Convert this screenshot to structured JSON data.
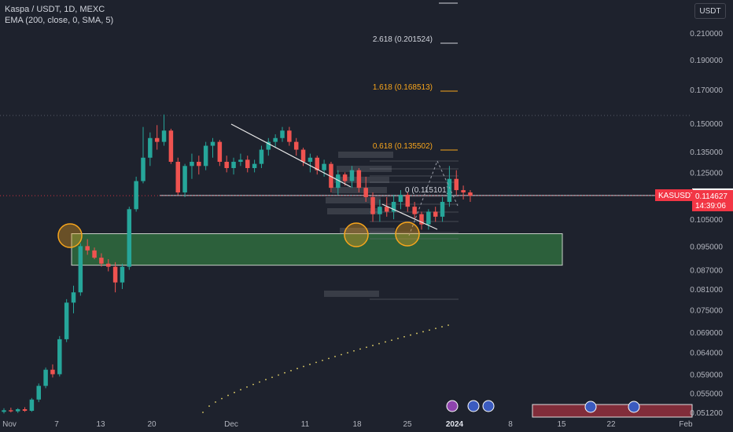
{
  "header": {
    "symbol_line": "Kaspa / USDT, 1D, MEXC",
    "indicator_line": "EMA (200, close, 0, SMA, 5)",
    "currency": "USDT"
  },
  "colors": {
    "background": "#1e222d",
    "up": "#26a69a",
    "down": "#ef5350",
    "fib_orange": "#f7a51c",
    "zone_fill": "#2f6b3e",
    "ema": "#e6d46a",
    "price_tag": "#f23645"
  },
  "price_tags": {
    "symbol": "KASUSDT",
    "last_price": "0.114627",
    "countdown": "14:39:06",
    "line_price": "0.114682"
  },
  "fib_labels": [
    {
      "text": "2.618 (0.201524)",
      "price": 0.201524,
      "color": "#d1d4dc"
    },
    {
      "text": "1.618 (0.168513)",
      "price": 0.168513,
      "color": "#f7a51c"
    },
    {
      "text": "0.618 (0.135502)",
      "price": 0.135502,
      "color": "#f7a51c"
    },
    {
      "text": "0 (0.115101)",
      "price": 0.115101,
      "color": "#d1d4dc"
    }
  ],
  "chart_data": {
    "type": "candlestick",
    "x_ticks": [
      "Nov",
      "7",
      "13",
      "20",
      "Dec",
      "11",
      "18",
      "25",
      "2024",
      "8",
      "15",
      "22",
      "Feb"
    ],
    "y_ticks": [
      "0.210000",
      "0.190000",
      "0.170000",
      "0.150000",
      "0.135000",
      "0.125000",
      "0.105000",
      "0.095000",
      "0.087000",
      "0.081000",
      "0.075000",
      "0.069000",
      "0.064000",
      "0.059000",
      "0.055000",
      "0.051200"
    ],
    "candles": [
      [
        0.0513,
        0.052,
        0.051,
        0.0516
      ],
      [
        0.0516,
        0.0521,
        0.0512,
        0.0514
      ],
      [
        0.0514,
        0.052,
        0.0511,
        0.0518
      ],
      [
        0.0518,
        0.0522,
        0.0513,
        0.0515
      ],
      [
        0.0515,
        0.054,
        0.0513,
        0.0537
      ],
      [
        0.0537,
        0.057,
        0.0532,
        0.0565
      ],
      [
        0.0565,
        0.0605,
        0.056,
        0.06
      ],
      [
        0.06,
        0.0612,
        0.0583,
        0.059
      ],
      [
        0.059,
        0.068,
        0.0585,
        0.0672
      ],
      [
        0.0672,
        0.078,
        0.0665,
        0.077
      ],
      [
        0.077,
        0.082,
        0.074,
        0.08
      ],
      [
        0.08,
        0.096,
        0.079,
        0.095
      ],
      [
        0.095,
        0.0975,
        0.092,
        0.0935
      ],
      [
        0.0935,
        0.0945,
        0.0905,
        0.091
      ],
      [
        0.091,
        0.0925,
        0.088,
        0.089
      ],
      [
        0.089,
        0.0905,
        0.0865,
        0.088
      ],
      [
        0.088,
        0.0895,
        0.08,
        0.083
      ],
      [
        0.083,
        0.089,
        0.081,
        0.088
      ],
      [
        0.088,
        0.11,
        0.087,
        0.109
      ],
      [
        0.109,
        0.123,
        0.108,
        0.121
      ],
      [
        0.121,
        0.148,
        0.12,
        0.132
      ],
      [
        0.132,
        0.145,
        0.128,
        0.142
      ],
      [
        0.142,
        0.149,
        0.136,
        0.14
      ],
      [
        0.14,
        0.155,
        0.138,
        0.146
      ],
      [
        0.146,
        0.147,
        0.129,
        0.13
      ],
      [
        0.13,
        0.132,
        0.115,
        0.116
      ],
      [
        0.116,
        0.129,
        0.114,
        0.128
      ],
      [
        0.128,
        0.134,
        0.122,
        0.13
      ],
      [
        0.13,
        0.133,
        0.124,
        0.128
      ],
      [
        0.128,
        0.14,
        0.126,
        0.138
      ],
      [
        0.138,
        0.142,
        0.132,
        0.14
      ],
      [
        0.14,
        0.141,
        0.128,
        0.13
      ],
      [
        0.13,
        0.133,
        0.125,
        0.127
      ],
      [
        0.127,
        0.132,
        0.124,
        0.13
      ],
      [
        0.13,
        0.134,
        0.128,
        0.131
      ],
      [
        0.131,
        0.133,
        0.125,
        0.127
      ],
      [
        0.127,
        0.131,
        0.125,
        0.129
      ],
      [
        0.129,
        0.138,
        0.127,
        0.136
      ],
      [
        0.136,
        0.142,
        0.133,
        0.14
      ],
      [
        0.14,
        0.144,
        0.137,
        0.142
      ],
      [
        0.142,
        0.148,
        0.14,
        0.146
      ],
      [
        0.146,
        0.148,
        0.138,
        0.14
      ],
      [
        0.14,
        0.142,
        0.133,
        0.136
      ],
      [
        0.136,
        0.137,
        0.128,
        0.13
      ],
      [
        0.13,
        0.134,
        0.125,
        0.132
      ],
      [
        0.132,
        0.133,
        0.124,
        0.126
      ],
      [
        0.126,
        0.131,
        0.123,
        0.129
      ],
      [
        0.129,
        0.13,
        0.116,
        0.118
      ],
      [
        0.118,
        0.126,
        0.115,
        0.124
      ],
      [
        0.124,
        0.125,
        0.119,
        0.121
      ],
      [
        0.121,
        0.128,
        0.118,
        0.126
      ],
      [
        0.126,
        0.127,
        0.116,
        0.118
      ],
      [
        0.118,
        0.123,
        0.112,
        0.114
      ],
      [
        0.114,
        0.116,
        0.104,
        0.107
      ],
      [
        0.107,
        0.113,
        0.104,
        0.11
      ],
      [
        0.11,
        0.114,
        0.106,
        0.108
      ],
      [
        0.108,
        0.115,
        0.105,
        0.112
      ],
      [
        0.112,
        0.117,
        0.109,
        0.115
      ],
      [
        0.115,
        0.116,
        0.108,
        0.11
      ],
      [
        0.11,
        0.112,
        0.105,
        0.107
      ],
      [
        0.107,
        0.108,
        0.101,
        0.103
      ],
      [
        0.103,
        0.109,
        0.101,
        0.108
      ],
      [
        0.108,
        0.11,
        0.104,
        0.106
      ],
      [
        0.106,
        0.114,
        0.104,
        0.112
      ],
      [
        0.112,
        0.128,
        0.11,
        0.122
      ],
      [
        0.122,
        0.126,
        0.115,
        0.117
      ],
      [
        0.117,
        0.119,
        0.113,
        0.116
      ],
      [
        0.116,
        0.117,
        0.112,
        0.1146
      ]
    ],
    "ema200": [
      [
        0.066,
        -1
      ],
      [
        0.066,
        0.066
      ]
    ],
    "zone": {
      "low": 0.0885,
      "high": 0.0995
    },
    "price_line": 0.114682
  }
}
